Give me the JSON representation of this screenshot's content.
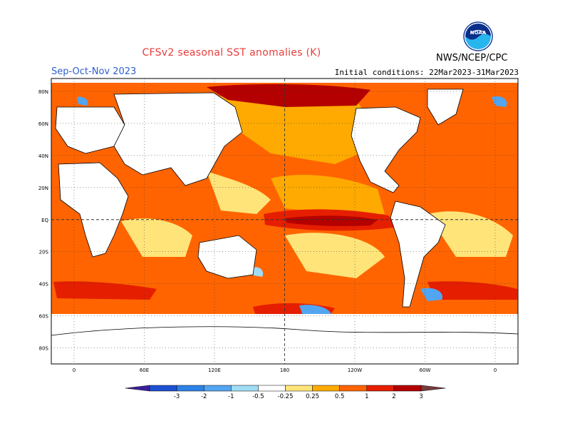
{
  "header": {
    "title": "CFSv2 seasonal SST anomalies (K)",
    "season": "Sep-Oct-Nov 2023",
    "initial_conditions": "Initial conditions: 22Mar2023-31Mar2023",
    "agency": "NWS/NCEP/CPC",
    "logo_text": "NOAA"
  },
  "map": {
    "lat_labels": [
      "80N",
      "60N",
      "40N",
      "20N",
      "EQ",
      "20S",
      "40S",
      "60S",
      "80S"
    ],
    "lon_labels": [
      "0",
      "60E",
      "120E",
      "180",
      "120W",
      "60W",
      "0"
    ],
    "colors": {
      "frame": "#000000",
      "grid": "#333333",
      "coast": "#000000",
      "ocean_neutral": "#ffffff"
    }
  },
  "colorbar": {
    "labels": [
      "-3",
      "-2",
      "-1",
      "-0.5",
      "-0.25",
      "0.25",
      "0.5",
      "1",
      "2",
      "3"
    ],
    "colors": [
      "#3b1fa0",
      "#1e50d2",
      "#2d82e6",
      "#52a5f0",
      "#a0dcf5",
      "#ffffff",
      "#ffe47a",
      "#ffaa00",
      "#ff6400",
      "#e61e00",
      "#b40000",
      "#7a3c3c"
    ]
  }
}
